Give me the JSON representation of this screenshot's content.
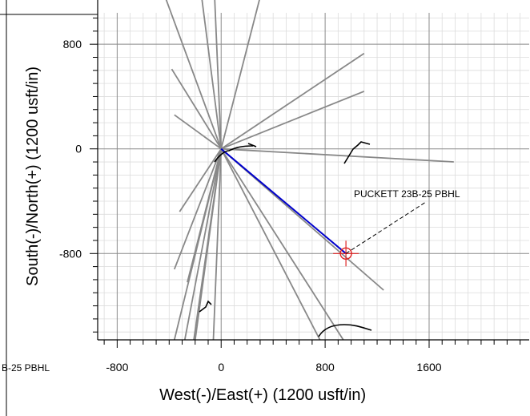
{
  "chart_data": {
    "type": "scatter",
    "title": "",
    "xlabel": "West(-)/East(+) (1200 usft/in)",
    "ylabel": "South(-)/North(+) (1200 usft/in)",
    "xlim": [
      -950,
      2370
    ],
    "ylim": [
      -1460,
      1040
    ],
    "xticks": [
      -800,
      0,
      800,
      1600
    ],
    "xtick_labels": [
      "-800",
      "0",
      "800",
      "1600"
    ],
    "yticks": [
      800,
      0,
      -800
    ],
    "ytick_labels": [
      "800",
      "0",
      "-800"
    ],
    "grid": true,
    "target": {
      "label": "PUCKETT 23B-25 PBHL",
      "clipped_label": "B-25 PBHL",
      "x": 960,
      "y": -800
    },
    "wellhead": {
      "x": 0,
      "y": 0
    },
    "planned_well": {
      "name": "PUCKETT 23B-25 PBHL",
      "color": "#0000cc",
      "points": [
        [
          0,
          0
        ],
        [
          960,
          -800
        ]
      ]
    },
    "offset_wells": [
      {
        "points": [
          [
            0,
            0
          ],
          [
            -430,
            1160
          ]
        ]
      },
      {
        "points": [
          [
            0,
            0
          ],
          [
            -380,
            610
          ]
        ]
      },
      {
        "points": [
          [
            0,
            0
          ],
          [
            -360,
            260
          ]
        ]
      },
      {
        "points": [
          [
            0,
            0
          ],
          [
            -320,
            -480
          ]
        ]
      },
      {
        "points": [
          [
            0,
            0
          ],
          [
            -360,
            -920
          ]
        ]
      },
      {
        "points": [
          [
            0,
            0
          ],
          [
            -260,
            -1020
          ]
        ]
      },
      {
        "points": [
          [
            0,
            0
          ],
          [
            -360,
            -1460
          ]
        ]
      },
      {
        "points": [
          [
            0,
            0
          ],
          [
            -280,
            -1460
          ]
        ]
      },
      {
        "points": [
          [
            0,
            0
          ],
          [
            -210,
            -1460
          ]
        ]
      },
      {
        "points": [
          [
            0,
            0
          ],
          [
            -60,
            -1460
          ]
        ]
      },
      {
        "points": [
          [
            0,
            0
          ],
          [
            -150,
            1160
          ]
        ]
      },
      {
        "points": [
          [
            0,
            0
          ],
          [
            -50,
            1160
          ]
        ]
      },
      {
        "points": [
          [
            0,
            0
          ],
          [
            300,
            1160
          ]
        ]
      },
      {
        "points": [
          [
            0,
            0
          ],
          [
            1100,
            730
          ]
        ]
      },
      {
        "points": [
          [
            0,
            0
          ],
          [
            1100,
            440
          ]
        ]
      },
      {
        "points": [
          [
            0,
            0
          ],
          [
            1790,
            -100
          ]
        ]
      },
      {
        "points": [
          [
            0,
            0
          ],
          [
            1250,
            -1080
          ]
        ]
      },
      {
        "points": [
          [
            0,
            0
          ],
          [
            760,
            -1460
          ]
        ]
      },
      {
        "points": [
          [
            0,
            0
          ],
          [
            940,
            -1460
          ]
        ]
      },
      {
        "points": [
          [
            0,
            0
          ],
          [
            -200,
            -1460
          ]
        ]
      }
    ],
    "offset_well_color": "#888888",
    "target_color": "#dd2222"
  }
}
